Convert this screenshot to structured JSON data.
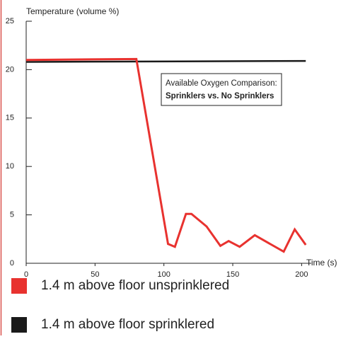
{
  "chart_data": {
    "type": "line",
    "ylabel": "Temperature (volume %)",
    "xlabel": "Time (s)",
    "annotation": {
      "line1": "Available Oxygen Comparison:",
      "line2": "Sprinklers vs. No Sprinklers"
    },
    "x": [
      0,
      80,
      103,
      108,
      116,
      120,
      131,
      141,
      147,
      155,
      166,
      187,
      195,
      203
    ],
    "series": [
      {
        "name": "1.4 m above floor unsprinklered",
        "color": "#e8322f",
        "x": [
          0,
          80,
          103,
          108,
          116,
          120,
          131,
          141,
          147,
          155,
          166,
          187,
          195,
          203
        ],
        "values": [
          21.0,
          21.1,
          2.0,
          1.7,
          5.1,
          5.1,
          3.8,
          1.8,
          2.3,
          1.7,
          2.9,
          1.2,
          3.5,
          1.9
        ]
      },
      {
        "name": "1.4 m above floor sprinklered",
        "color": "#1a1a1a",
        "x": [
          0,
          203
        ],
        "values": [
          20.8,
          20.9
        ]
      }
    ],
    "xlim": [
      0,
      207
    ],
    "xticks": [
      0,
      50,
      100,
      150,
      200
    ],
    "ylim": [
      0,
      25
    ],
    "yticks": [
      0,
      5,
      10,
      15,
      20,
      25
    ]
  }
}
